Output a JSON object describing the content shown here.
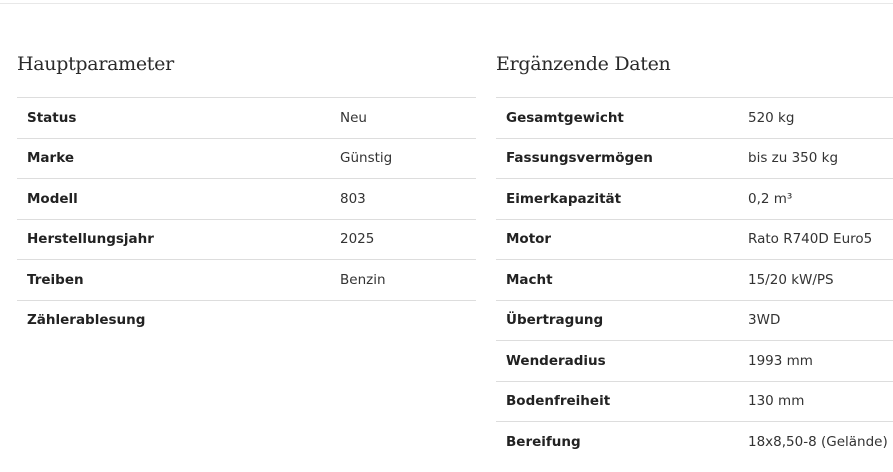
{
  "main_params": {
    "title": "Hauptparameter",
    "rows": [
      {
        "label": "Status",
        "value": "Neu"
      },
      {
        "label": "Marke",
        "value": "Günstig"
      },
      {
        "label": "Modell",
        "value": "803"
      },
      {
        "label": "Herstellungsjahr",
        "value": "2025"
      },
      {
        "label": "Treiben",
        "value": "Benzin"
      },
      {
        "label": "Zählerablesung",
        "value": ""
      }
    ]
  },
  "extra_data": {
    "title": "Ergänzende Daten",
    "rows": [
      {
        "label": "Gesamtgewicht",
        "value": "520 kg"
      },
      {
        "label": "Fassungsvermögen",
        "value": "bis zu 350 kg"
      },
      {
        "label": "Eimerkapazität",
        "value": "0,2 m³"
      },
      {
        "label": "Motor",
        "value": "Rato R740D Euro5"
      },
      {
        "label": "Macht",
        "value": "15/20 kW/PS"
      },
      {
        "label": "Übertragung",
        "value": "3WD"
      },
      {
        "label": "Wenderadius",
        "value": "1993 mm"
      },
      {
        "label": "Bodenfreiheit",
        "value": "130 mm"
      },
      {
        "label": "Bereifung",
        "value": "18x8,50-8 (Gelände)"
      }
    ]
  }
}
